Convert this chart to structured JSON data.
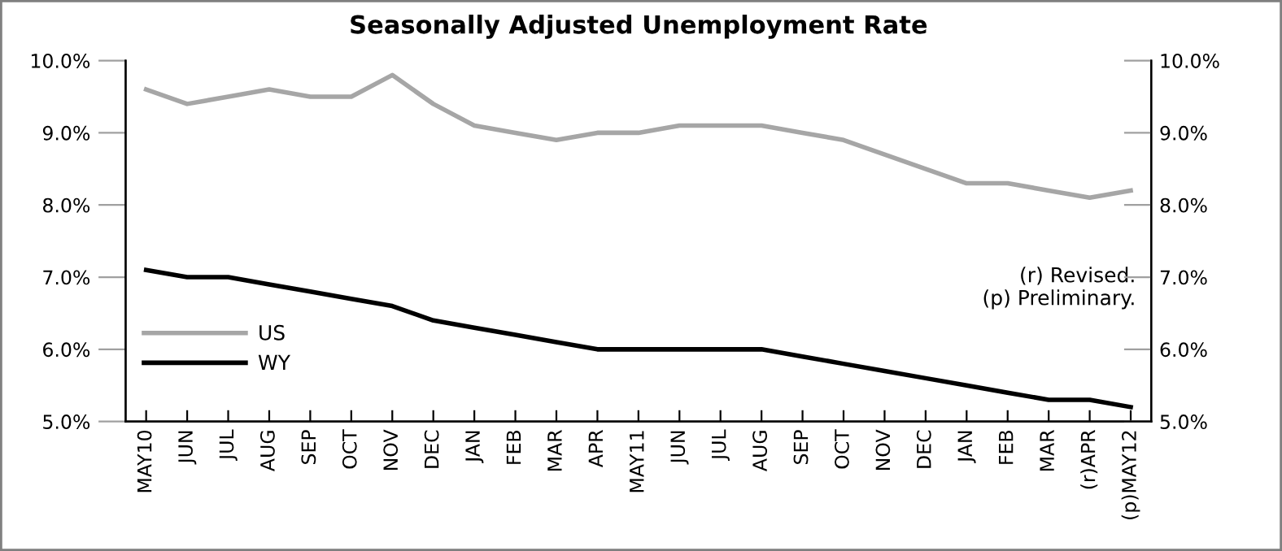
{
  "chart_data": {
    "type": "line",
    "title": "Seasonally Adjusted Unemployment Rate",
    "categories": [
      "MAY10",
      "JUN",
      "JUL",
      "AUG",
      "SEP",
      "OCT",
      "NOV",
      "DEC",
      "JAN",
      "FEB",
      "MAR",
      "APR",
      "MAY11",
      "JUN",
      "JUL",
      "AUG",
      "SEP",
      "OCT",
      "NOV",
      "DEC",
      "JAN",
      "FEB",
      "MAR",
      "(r)APR",
      "(p)MAY12"
    ],
    "series": [
      {
        "name": "US",
        "color": "#a6a6a6",
        "values": [
          9.6,
          9.4,
          9.5,
          9.6,
          9.5,
          9.5,
          9.8,
          9.4,
          9.1,
          9.0,
          8.9,
          9.0,
          9.0,
          9.1,
          9.1,
          9.1,
          9.0,
          8.9,
          8.7,
          8.5,
          8.3,
          8.3,
          8.2,
          8.1,
          8.2
        ]
      },
      {
        "name": "WY",
        "color": "#000000",
        "values": [
          7.1,
          7.0,
          7.0,
          6.9,
          6.8,
          6.7,
          6.6,
          6.4,
          6.3,
          6.2,
          6.1,
          6.0,
          6.0,
          6.0,
          6.0,
          6.0,
          5.9,
          5.8,
          5.7,
          5.6,
          5.5,
          5.4,
          5.3,
          5.3,
          5.2
        ]
      }
    ],
    "ylim": [
      5,
      10
    ],
    "yticks": [
      {
        "value": 5,
        "label": "5.0%"
      },
      {
        "value": 6,
        "label": "6.0%"
      },
      {
        "value": 7,
        "label": "7.0%"
      },
      {
        "value": 8,
        "label": "8.0%"
      },
      {
        "value": 9,
        "label": "9.0%"
      },
      {
        "value": 10,
        "label": "10.0%"
      }
    ],
    "y2lim": [
      5,
      10
    ],
    "y2ticks": [
      {
        "value": 5,
        "label": "5.0%"
      },
      {
        "value": 6,
        "label": "6.0%"
      },
      {
        "value": 7,
        "label": "7.0%"
      },
      {
        "value": 8,
        "label": "8.0%"
      },
      {
        "value": 9,
        "label": "9.0%"
      },
      {
        "value": 10,
        "label": "10.0%"
      }
    ],
    "annotations": [
      "(r) Revised.\n(p) Preliminary."
    ],
    "legend": "left",
    "grid": false,
    "marker": "none",
    "line_style": "solid"
  }
}
